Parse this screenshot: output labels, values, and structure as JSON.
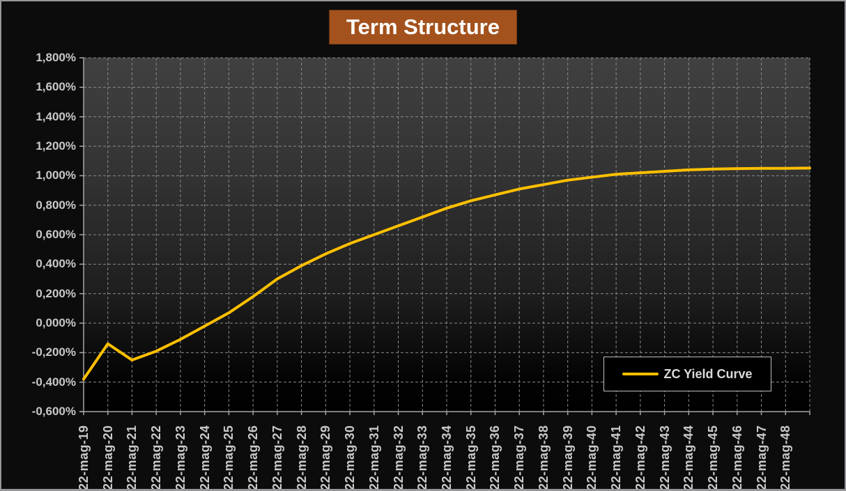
{
  "title": "Term Structure",
  "legend": {
    "label": "ZC Yield Curve"
  },
  "colors": {
    "accent": "#FFC000",
    "title-bg": "#A3521D",
    "title-text": "#FFFFFF",
    "axis-text": "#C9C9C9",
    "legend-text": "#D9D9D9",
    "legend-bg": "#000000",
    "legend-border": "#C0C0C0",
    "grid-line": "#8A8A8A",
    "axis-line": "#A6A6A6",
    "outer-bg": "#0C0C0C",
    "frame-border": "#97979B"
  },
  "chart_data": {
    "type": "line",
    "title": "Term Structure",
    "xlabel": "",
    "ylabel": "",
    "ylim": [
      -0.6,
      1.8
    ],
    "y_step": 0.2,
    "unit": "%",
    "decimal_separator": ",",
    "grid": "dashed",
    "legend_position": "inside-bottom-right",
    "y_tick_labels": [
      "1,800%",
      "1,600%",
      "1,400%",
      "1,200%",
      "1,000%",
      "0,800%",
      "0,600%",
      "0,400%",
      "0,200%",
      "0,000%",
      "-0,200%",
      "-0,400%",
      "-0,600%"
    ],
    "categories": [
      "22-mag-19",
      "22-mag-20",
      "22-mag-21",
      "22-mag-22",
      "22-mag-23",
      "22-mag-24",
      "22-mag-25",
      "22-mag-26",
      "22-mag-27",
      "22-mag-28",
      "22-mag-29",
      "22-mag-30",
      "22-mag-31",
      "22-mag-32",
      "22-mag-33",
      "22-mag-34",
      "22-mag-35",
      "22-mag-36",
      "22-mag-37",
      "22-mag-38",
      "22-mag-39",
      "22-mag-40",
      "22-mag-41",
      "22-mag-42",
      "22-mag-43",
      "22-mag-44",
      "22-mag-45",
      "22-mag-46",
      "22-mag-47",
      "22-mag-48"
    ],
    "series": [
      {
        "name": "ZC Yield Curve",
        "color": "#FFC000",
        "values": [
          -0.38,
          -0.14,
          -0.25,
          -0.19,
          -0.11,
          -0.02,
          0.07,
          0.18,
          0.3,
          0.39,
          0.47,
          0.54,
          0.6,
          0.66,
          0.72,
          0.78,
          0.83,
          0.87,
          0.91,
          0.94,
          0.97,
          0.99,
          1.01,
          1.02,
          1.03,
          1.04,
          1.045,
          1.048,
          1.05,
          1.05
        ]
      }
    ],
    "curve_extends_to_plot_right_edge": true,
    "edge_value": 1.052
  }
}
